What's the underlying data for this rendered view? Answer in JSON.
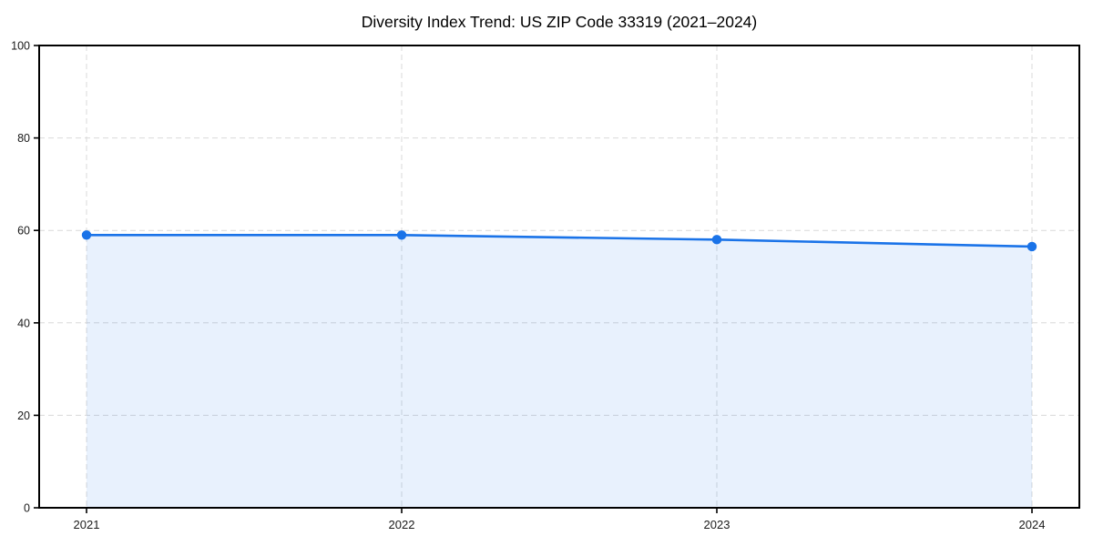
{
  "chart_data": {
    "type": "area",
    "title": "Diversity Index Trend: US ZIP Code 33319 (2021–2024)",
    "x": [
      "2021",
      "2022",
      "2023",
      "2024"
    ],
    "series": [
      {
        "name": "Diversity Index",
        "values": [
          59,
          59,
          58,
          56.5
        ]
      }
    ],
    "xlabel": "",
    "ylabel": "",
    "ylim": [
      0,
      100
    ],
    "yticks": [
      0,
      20,
      40,
      60,
      80,
      100
    ],
    "grid": {
      "visible": true,
      "style": "dashed",
      "axes": "both"
    },
    "legend": {
      "visible": false
    },
    "marker": "circle",
    "colors": {
      "line": "#1a73e8",
      "fill": "#1a73e8",
      "fill_opacity": 0.1,
      "grid": "#d9d9d9",
      "axis": "#000000",
      "tick_text": "#1a1a1a"
    }
  }
}
